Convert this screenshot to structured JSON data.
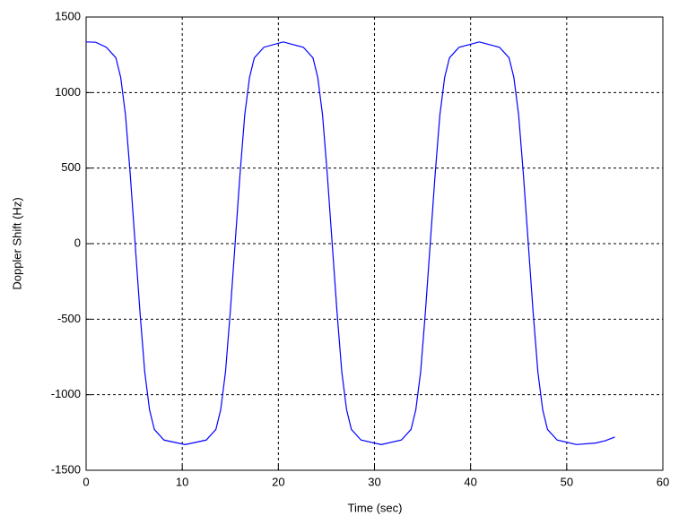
{
  "chart_data": {
    "type": "line",
    "x_label": "Time (sec)",
    "y_label": "Doppler Shift (Hz)",
    "x": [
      0,
      1,
      2.1,
      3.1,
      3.6,
      4.1,
      4.6,
      5.1,
      5.6,
      6.1,
      6.6,
      7.1,
      8.1,
      10.3,
      12.5,
      13.5,
      14,
      14.5,
      15,
      15.5,
      16,
      16.5,
      17,
      17.5,
      18.5,
      20.5,
      22.6,
      23.6,
      24.1,
      24.6,
      25.1,
      25.6,
      26.1,
      26.6,
      27.1,
      27.6,
      28.6,
      30.7,
      32.8,
      33.8,
      34.3,
      34.8,
      35.3,
      35.8,
      36.3,
      36.8,
      37.3,
      37.8,
      38.8,
      40.9,
      43,
      44,
      44.5,
      45,
      45.5,
      46,
      46.5,
      47,
      47.5,
      48,
      49,
      51,
      53,
      54,
      55
    ],
    "series": [
      {
        "color": "#0000ff",
        "values": [
          1335,
          1333,
          1300,
          1230,
          1100,
          850,
          450,
          0,
          -450,
          -850,
          -1100,
          -1230,
          -1300,
          -1330,
          -1300,
          -1230,
          -1100,
          -850,
          -450,
          0,
          450,
          850,
          1100,
          1230,
          1300,
          1335,
          1300,
          1230,
          1100,
          850,
          450,
          0,
          -450,
          -850,
          -1100,
          -1230,
          -1300,
          -1330,
          -1300,
          -1230,
          -1100,
          -850,
          -450,
          0,
          450,
          850,
          1100,
          1230,
          1300,
          1335,
          1300,
          1230,
          1100,
          850,
          450,
          0,
          -450,
          -850,
          -1100,
          -1230,
          -1300,
          -1330,
          -1320,
          -1305,
          -1280
        ]
      }
    ],
    "xlim": [
      0,
      60
    ],
    "xticks": [
      0,
      10,
      20,
      30,
      40,
      50,
      60
    ],
    "ylim": [
      -1500,
      1500
    ],
    "yticks": [
      -1500,
      -1000,
      -500,
      0,
      500,
      1000,
      1500
    ],
    "grid": true
  }
}
